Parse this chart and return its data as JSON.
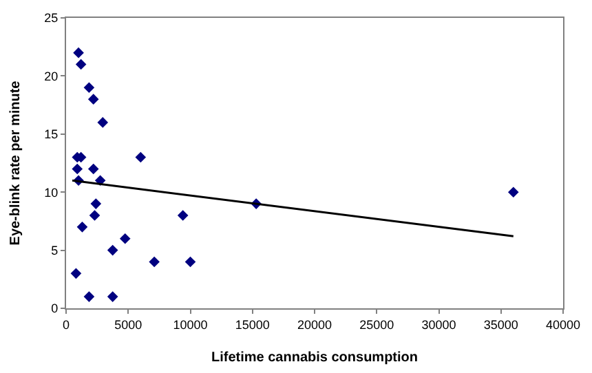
{
  "chart_data": {
    "type": "scatter",
    "xlabel": "Lifetime cannabis consumption",
    "ylabel": "Eye-blink rate per minute",
    "xlim": [
      0,
      40000
    ],
    "xticks": [
      0,
      5000,
      10000,
      15000,
      20000,
      25000,
      30000,
      35000,
      40000
    ],
    "ylim": [
      0,
      25
    ],
    "yticks": [
      0,
      5,
      10,
      15,
      20,
      25
    ],
    "series": [
      {
        "marker": "diamond",
        "color": "#000080",
        "x": [
          1000,
          1200,
          1850,
          2200,
          2950,
          900,
          1200,
          6000,
          900,
          2200,
          1000,
          2750,
          2400,
          2300,
          1300,
          4750,
          3750,
          7100,
          10000,
          9400,
          800,
          1850,
          3750,
          15300,
          36000
        ],
        "values": [
          22,
          21,
          19,
          18,
          16,
          13,
          13,
          13,
          12,
          12,
          11,
          11,
          9,
          8,
          7,
          6,
          5,
          4,
          4,
          8,
          3,
          1,
          1,
          9,
          10
        ]
      },
      {
        "type": "line",
        "marker": "none",
        "color": "#000000",
        "x": [
          500,
          36000
        ],
        "values": [
          11.0,
          6.2
        ]
      }
    ]
  }
}
